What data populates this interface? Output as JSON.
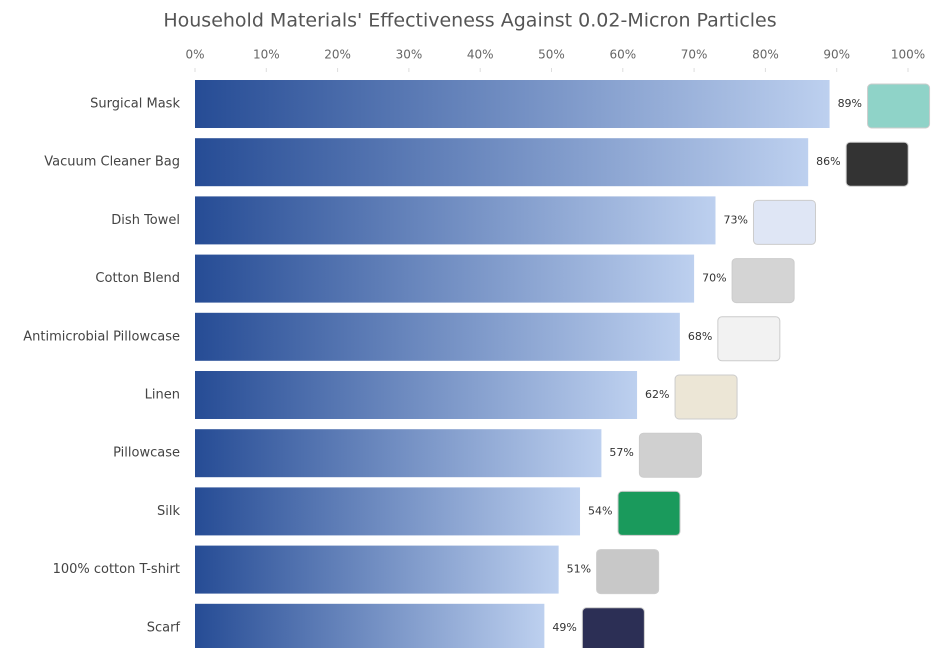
{
  "chart_data": {
    "type": "barh",
    "title": "Household Materials' Effectiveness Against 0.02-Micron Particles",
    "categories": [
      "Surgical Mask",
      "Vacuum Cleaner Bag",
      "Dish Towel",
      "Cotton Blend",
      "Antimicrobial Pillowcase",
      "Linen",
      "Pillowcase",
      "Silk",
      "100% cotton T-shirt",
      "Scarf"
    ],
    "values": [
      89,
      86,
      73,
      70,
      68,
      62,
      57,
      54,
      51,
      49
    ],
    "value_labels": [
      "89%",
      "86%",
      "73%",
      "70%",
      "68%",
      "62%",
      "57%",
      "54%",
      "51%",
      "49%"
    ],
    "colors": [
      "#264c95",
      "#bdd0ef"
    ],
    "xlim": [
      0,
      100
    ],
    "xticks": [
      {
        "value": 0,
        "label": "0%"
      },
      {
        "value": 10,
        "label": "10%"
      },
      {
        "value": 20,
        "label": "20%"
      },
      {
        "value": 30,
        "label": "30%"
      },
      {
        "value": 40,
        "label": "40%"
      },
      {
        "value": 50,
        "label": "50%"
      },
      {
        "value": 60,
        "label": "60%"
      },
      {
        "value": 70,
        "label": "70%"
      },
      {
        "value": 80,
        "label": "80%"
      },
      {
        "value": 90,
        "label": "90%"
      },
      {
        "value": 100,
        "label": "100%"
      }
    ],
    "grid": false
  }
}
